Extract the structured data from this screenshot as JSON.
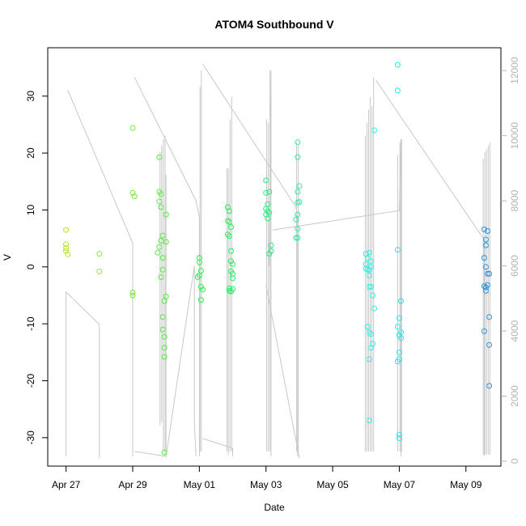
{
  "chart_data": {
    "type": "scatter",
    "title": "ATOM4 Southbound V",
    "xlabel": "Date",
    "ylabel": "V",
    "x_ticks": [
      "Apr 27",
      "Apr 29",
      "May 01",
      "May 03",
      "May 05",
      "May 07",
      "May 09"
    ],
    "x_tick_days": [
      0,
      2,
      4,
      6,
      8,
      10,
      12
    ],
    "xlim_days": [
      -0.55,
      13.05
    ],
    "ylim": [
      -35,
      38.5
    ],
    "y_ticks": [
      -30,
      -20,
      -10,
      0,
      10,
      20,
      30
    ],
    "y2_ticks": [
      0,
      2000,
      4000,
      6000,
      8000,
      10000,
      12000
    ],
    "y2lim": [
      -150,
      12700
    ],
    "grid": false,
    "point_colors": {
      "start": "#b5e61d",
      "middle": "#22ee55",
      "late": "#33eeee",
      "end": "#2a8fdf"
    },
    "line_color": "#c8c8c8",
    "points": [
      {
        "x": 0.0,
        "y": 6.5
      },
      {
        "x": 0.0,
        "y": 4.0
      },
      {
        "x": 0.0,
        "y": 3.3
      },
      {
        "x": 0.0,
        "y": 2.8
      },
      {
        "x": 0.05,
        "y": 2.2
      },
      {
        "x": 1.0,
        "y": 2.3
      },
      {
        "x": 1.0,
        "y": -0.8
      },
      {
        "x": 2.0,
        "y": 24.4
      },
      {
        "x": 2.0,
        "y": 13.0
      },
      {
        "x": 2.05,
        "y": 12.4
      },
      {
        "x": 2.0,
        "y": -4.5
      },
      {
        "x": 2.0,
        "y": -5.0
      },
      {
        "x": 2.8,
        "y": 19.3
      },
      {
        "x": 2.8,
        "y": 13.2
      },
      {
        "x": 2.85,
        "y": 12.8
      },
      {
        "x": 2.8,
        "y": 11.5
      },
      {
        "x": 2.85,
        "y": 10.5
      },
      {
        "x": 2.9,
        "y": 5.5
      },
      {
        "x": 2.85,
        "y": 4.6
      },
      {
        "x": 2.8,
        "y": 3.5
      },
      {
        "x": 2.75,
        "y": 2.5
      },
      {
        "x": 2.9,
        "y": 1.6
      },
      {
        "x": 2.9,
        "y": -0.5
      },
      {
        "x": 2.85,
        "y": -1.8
      },
      {
        "x": 3.0,
        "y": -5.2
      },
      {
        "x": 2.95,
        "y": -6.0
      },
      {
        "x": 2.9,
        "y": -8.8
      },
      {
        "x": 2.9,
        "y": -11.0
      },
      {
        "x": 2.95,
        "y": -12.3
      },
      {
        "x": 2.95,
        "y": -14.2
      },
      {
        "x": 2.95,
        "y": -15.8
      },
      {
        "x": 2.95,
        "y": -32.6
      },
      {
        "x": 3.0,
        "y": 9.2
      },
      {
        "x": 3.0,
        "y": 4.4
      },
      {
        "x": 4.0,
        "y": 1.6
      },
      {
        "x": 4.0,
        "y": 0.8
      },
      {
        "x": 4.05,
        "y": -0.7
      },
      {
        "x": 4.0,
        "y": -1.5
      },
      {
        "x": 3.95,
        "y": -1.8
      },
      {
        "x": 4.05,
        "y": -3.5
      },
      {
        "x": 4.1,
        "y": -4.0
      },
      {
        "x": 4.05,
        "y": -5.8
      },
      {
        "x": 4.85,
        "y": 10.5
      },
      {
        "x": 4.9,
        "y": 9.8
      },
      {
        "x": 4.85,
        "y": 8.1
      },
      {
        "x": 4.9,
        "y": 7.9
      },
      {
        "x": 4.95,
        "y": 7.0
      },
      {
        "x": 4.85,
        "y": 5.7
      },
      {
        "x": 4.9,
        "y": 5.4
      },
      {
        "x": 4.95,
        "y": 2.8
      },
      {
        "x": 4.95,
        "y": 1.0
      },
      {
        "x": 5.0,
        "y": 0.5
      },
      {
        "x": 4.95,
        "y": -0.8
      },
      {
        "x": 5.0,
        "y": -1.2
      },
      {
        "x": 5.0,
        "y": -2.0
      },
      {
        "x": 4.9,
        "y": -3.8
      },
      {
        "x": 4.9,
        "y": -4.2
      },
      {
        "x": 4.95,
        "y": -4.3
      },
      {
        "x": 5.0,
        "y": -3.9
      },
      {
        "x": 6.0,
        "y": 15.2
      },
      {
        "x": 6.0,
        "y": 13.0
      },
      {
        "x": 6.1,
        "y": 13.2
      },
      {
        "x": 6.05,
        "y": 11.0
      },
      {
        "x": 6.0,
        "y": 10.2
      },
      {
        "x": 6.05,
        "y": 9.8
      },
      {
        "x": 6.0,
        "y": 9.2
      },
      {
        "x": 6.1,
        "y": 9.5
      },
      {
        "x": 6.05,
        "y": 8.5
      },
      {
        "x": 6.15,
        "y": 3.8
      },
      {
        "x": 6.15,
        "y": 2.8
      },
      {
        "x": 6.1,
        "y": 2.3
      },
      {
        "x": 6.95,
        "y": 21.9
      },
      {
        "x": 6.95,
        "y": 19.3
      },
      {
        "x": 7.0,
        "y": 14.2
      },
      {
        "x": 6.95,
        "y": 13.2
      },
      {
        "x": 6.95,
        "y": 11.3
      },
      {
        "x": 7.0,
        "y": 11.4
      },
      {
        "x": 6.95,
        "y": 9.2
      },
      {
        "x": 6.9,
        "y": 8.3
      },
      {
        "x": 6.95,
        "y": 6.7
      },
      {
        "x": 6.9,
        "y": 5.1
      },
      {
        "x": 6.95,
        "y": 5.1
      },
      {
        "x": 9.0,
        "y": 2.3
      },
      {
        "x": 9.05,
        "y": 1.5
      },
      {
        "x": 9.0,
        "y": 0.5
      },
      {
        "x": 9.0,
        "y": -0.3
      },
      {
        "x": 9.05,
        "y": -0.5
      },
      {
        "x": 9.1,
        "y": -0.5
      },
      {
        "x": 9.1,
        "y": 2.5
      },
      {
        "x": 9.15,
        "y": 1.0
      },
      {
        "x": 9.15,
        "y": 0.0
      },
      {
        "x": 9.1,
        "y": -1.5
      },
      {
        "x": 9.1,
        "y": -3.5
      },
      {
        "x": 9.15,
        "y": -3.5
      },
      {
        "x": 9.2,
        "y": -5.0
      },
      {
        "x": 9.25,
        "y": -7.3
      },
      {
        "x": 9.05,
        "y": -10.5
      },
      {
        "x": 9.1,
        "y": -11.5
      },
      {
        "x": 9.15,
        "y": -11.8
      },
      {
        "x": 9.2,
        "y": -13.5
      },
      {
        "x": 9.15,
        "y": -14.2
      },
      {
        "x": 9.1,
        "y": -16.2
      },
      {
        "x": 9.1,
        "y": -27.0
      },
      {
        "x": 9.25,
        "y": 24.0
      },
      {
        "x": 9.95,
        "y": 35.5
      },
      {
        "x": 9.95,
        "y": 31.0
      },
      {
        "x": 9.95,
        "y": 3.0
      },
      {
        "x": 9.95,
        "y": -10.5
      },
      {
        "x": 10.0,
        "y": -12.0
      },
      {
        "x": 10.0,
        "y": -9.0
      },
      {
        "x": 10.05,
        "y": -6.0
      },
      {
        "x": 10.05,
        "y": -11.5
      },
      {
        "x": 10.05,
        "y": -12.5
      },
      {
        "x": 10.0,
        "y": -15.0
      },
      {
        "x": 10.0,
        "y": -16.2
      },
      {
        "x": 9.95,
        "y": -16.6
      },
      {
        "x": 10.0,
        "y": -29.5
      },
      {
        "x": 10.0,
        "y": -30.1
      },
      {
        "x": 12.55,
        "y": 6.6
      },
      {
        "x": 12.65,
        "y": 6.3
      },
      {
        "x": 12.6,
        "y": 4.8
      },
      {
        "x": 12.6,
        "y": 3.8
      },
      {
        "x": 12.55,
        "y": 1.6
      },
      {
        "x": 12.6,
        "y": 0.0
      },
      {
        "x": 12.65,
        "y": -1.2
      },
      {
        "x": 12.7,
        "y": -1.2
      },
      {
        "x": 12.55,
        "y": -3.4
      },
      {
        "x": 12.6,
        "y": -3.6
      },
      {
        "x": 12.65,
        "y": -3.2
      },
      {
        "x": 12.6,
        "y": -4.2
      },
      {
        "x": 12.7,
        "y": -8.8
      },
      {
        "x": 12.55,
        "y": -11.3
      },
      {
        "x": 12.7,
        "y": -13.7
      },
      {
        "x": 12.7,
        "y": -20.9
      }
    ],
    "secondary_series": {
      "axis": "right",
      "segments": [
        [
          [
            0.0,
            150
          ],
          [
            0.0,
            5200
          ],
          [
            1.0,
            4200
          ],
          [
            1.0,
            100
          ]
        ],
        [
          [
            0.05,
            11400
          ],
          [
            2.0,
            6700
          ],
          [
            2.0,
            150
          ]
        ],
        [
          [
            2.05,
            11800
          ],
          [
            3.9,
            8000
          ],
          [
            4.0,
            7500
          ],
          [
            4.0,
            150
          ]
        ],
        [
          [
            2.05,
            300
          ],
          [
            3.0,
            150
          ],
          [
            3.85,
            6000
          ],
          [
            3.85,
            1200
          ],
          [
            3.9,
            150
          ]
        ],
        [
          [
            4.1,
            12200
          ],
          [
            6.9,
            7800
          ],
          [
            6.95,
            7400
          ],
          [
            6.95,
            150
          ]
        ],
        [
          [
            4.1,
            700
          ],
          [
            5.0,
            400
          ],
          [
            5.0,
            150
          ]
        ],
        [
          [
            6.1,
            6000
          ],
          [
            6.15,
            12000
          ],
          [
            6.15,
            150
          ]
        ],
        [
          [
            6.2,
            7100
          ],
          [
            10.0,
            7700
          ],
          [
            10.05,
            9900
          ],
          [
            10.05,
            150
          ]
        ],
        [
          [
            6.0,
            5400
          ],
          [
            7.0,
            100
          ],
          [
            7.0,
            150
          ]
        ],
        [
          [
            9.3,
            11700
          ],
          [
            12.55,
            6800
          ],
          [
            12.55,
            150
          ]
        ]
      ],
      "spikes": [
        {
          "x": 2.82,
          "ymin": 1100,
          "ymax": 9500
        },
        {
          "x": 2.87,
          "ymin": 1200,
          "ymax": 9700
        },
        {
          "x": 2.92,
          "ymin": 300,
          "ymax": 9900
        },
        {
          "x": 2.97,
          "ymin": 200,
          "ymax": 10000
        },
        {
          "x": 3.0,
          "ymin": 300,
          "ymax": 8800
        },
        {
          "x": 4.02,
          "ymin": 300,
          "ymax": 11500
        },
        {
          "x": 4.06,
          "ymin": 300,
          "ymax": 12000
        },
        {
          "x": 4.83,
          "ymin": 300,
          "ymax": 9000
        },
        {
          "x": 4.87,
          "ymin": 200,
          "ymax": 9000
        },
        {
          "x": 4.92,
          "ymin": 300,
          "ymax": 10500
        },
        {
          "x": 4.97,
          "ymin": 300,
          "ymax": 11200
        },
        {
          "x": 6.02,
          "ymin": 300,
          "ymax": 10500
        },
        {
          "x": 6.07,
          "ymin": 300,
          "ymax": 10400
        },
        {
          "x": 6.12,
          "ymin": 300,
          "ymax": 12000
        },
        {
          "x": 6.92,
          "ymin": 300,
          "ymax": 9800
        },
        {
          "x": 6.97,
          "ymin": 300,
          "ymax": 9700
        },
        {
          "x": 8.98,
          "ymin": 300,
          "ymax": 10000
        },
        {
          "x": 9.03,
          "ymin": 300,
          "ymax": 10400
        },
        {
          "x": 9.08,
          "ymin": 300,
          "ymax": 10800
        },
        {
          "x": 9.13,
          "ymin": 300,
          "ymax": 11200
        },
        {
          "x": 9.18,
          "ymin": 300,
          "ymax": 10900
        },
        {
          "x": 9.23,
          "ymin": 300,
          "ymax": 11800
        },
        {
          "x": 9.95,
          "ymin": 300,
          "ymax": 9400
        },
        {
          "x": 10.02,
          "ymin": 300,
          "ymax": 9800
        },
        {
          "x": 10.07,
          "ymin": 300,
          "ymax": 9900
        },
        {
          "x": 12.52,
          "ymin": 200,
          "ymax": 9300
        },
        {
          "x": 12.57,
          "ymin": 200,
          "ymax": 9500
        },
        {
          "x": 12.62,
          "ymin": 200,
          "ymax": 9600
        },
        {
          "x": 12.67,
          "ymin": 200,
          "ymax": 9700
        },
        {
          "x": 12.72,
          "ymin": 200,
          "ymax": 9800
        }
      ]
    }
  }
}
